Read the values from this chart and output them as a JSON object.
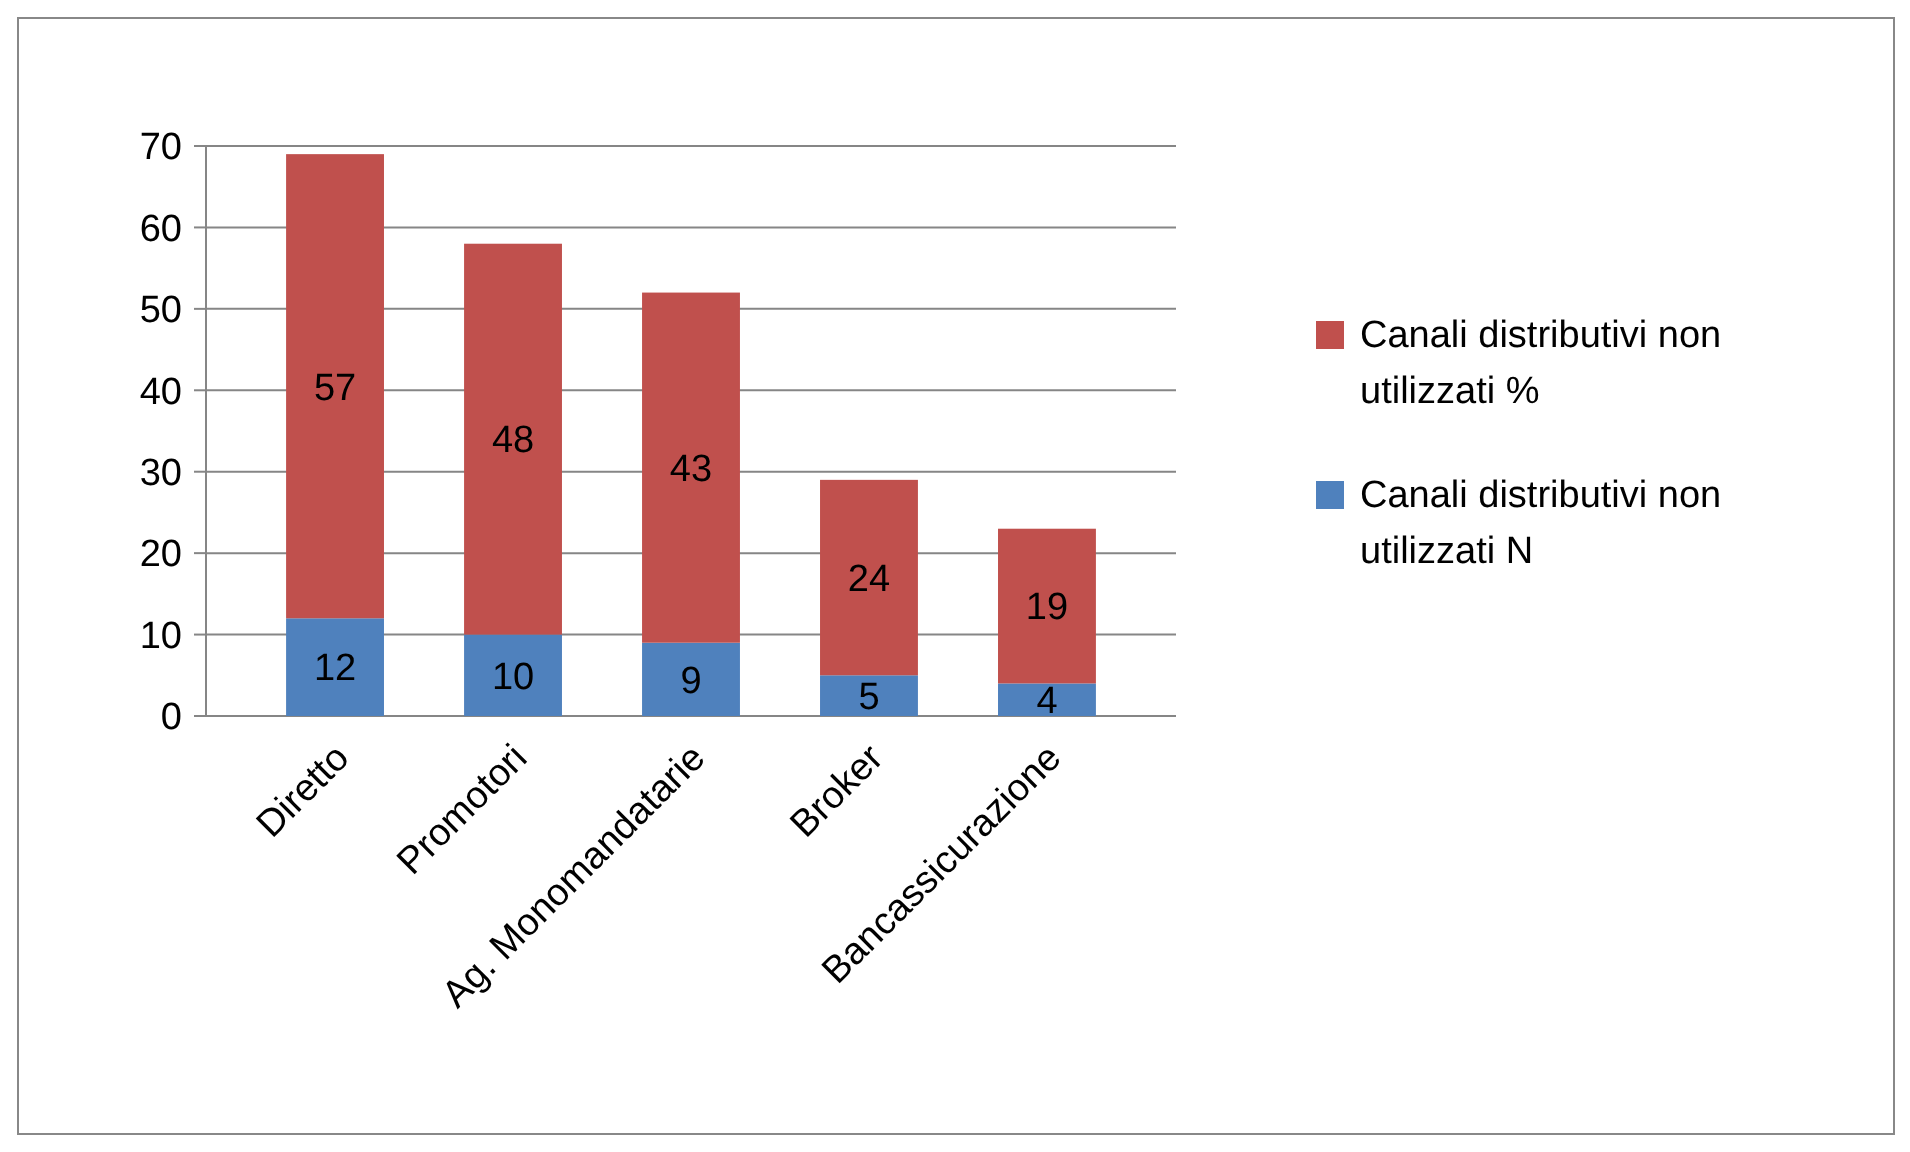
{
  "chart_data": {
    "type": "bar",
    "stacked": true,
    "categories": [
      "Diretto",
      "Promotori",
      "Ag. Monomandatarie",
      "Broker",
      "Bancassicurazione"
    ],
    "series": [
      {
        "name": "Canali distributivi non utilizzati  N",
        "color": "#4f81bd",
        "values": [
          12,
          10,
          9,
          5,
          4
        ]
      },
      {
        "name": "Canali distributivi non utilizzati  %",
        "color": "#c0504d",
        "values": [
          57,
          48,
          43,
          24,
          19
        ]
      }
    ],
    "ylim": [
      0,
      70
    ],
    "yticks": [
      0,
      10,
      20,
      30,
      40,
      50,
      60,
      70
    ],
    "grid": "y",
    "legend": "right",
    "data_labels": true
  }
}
